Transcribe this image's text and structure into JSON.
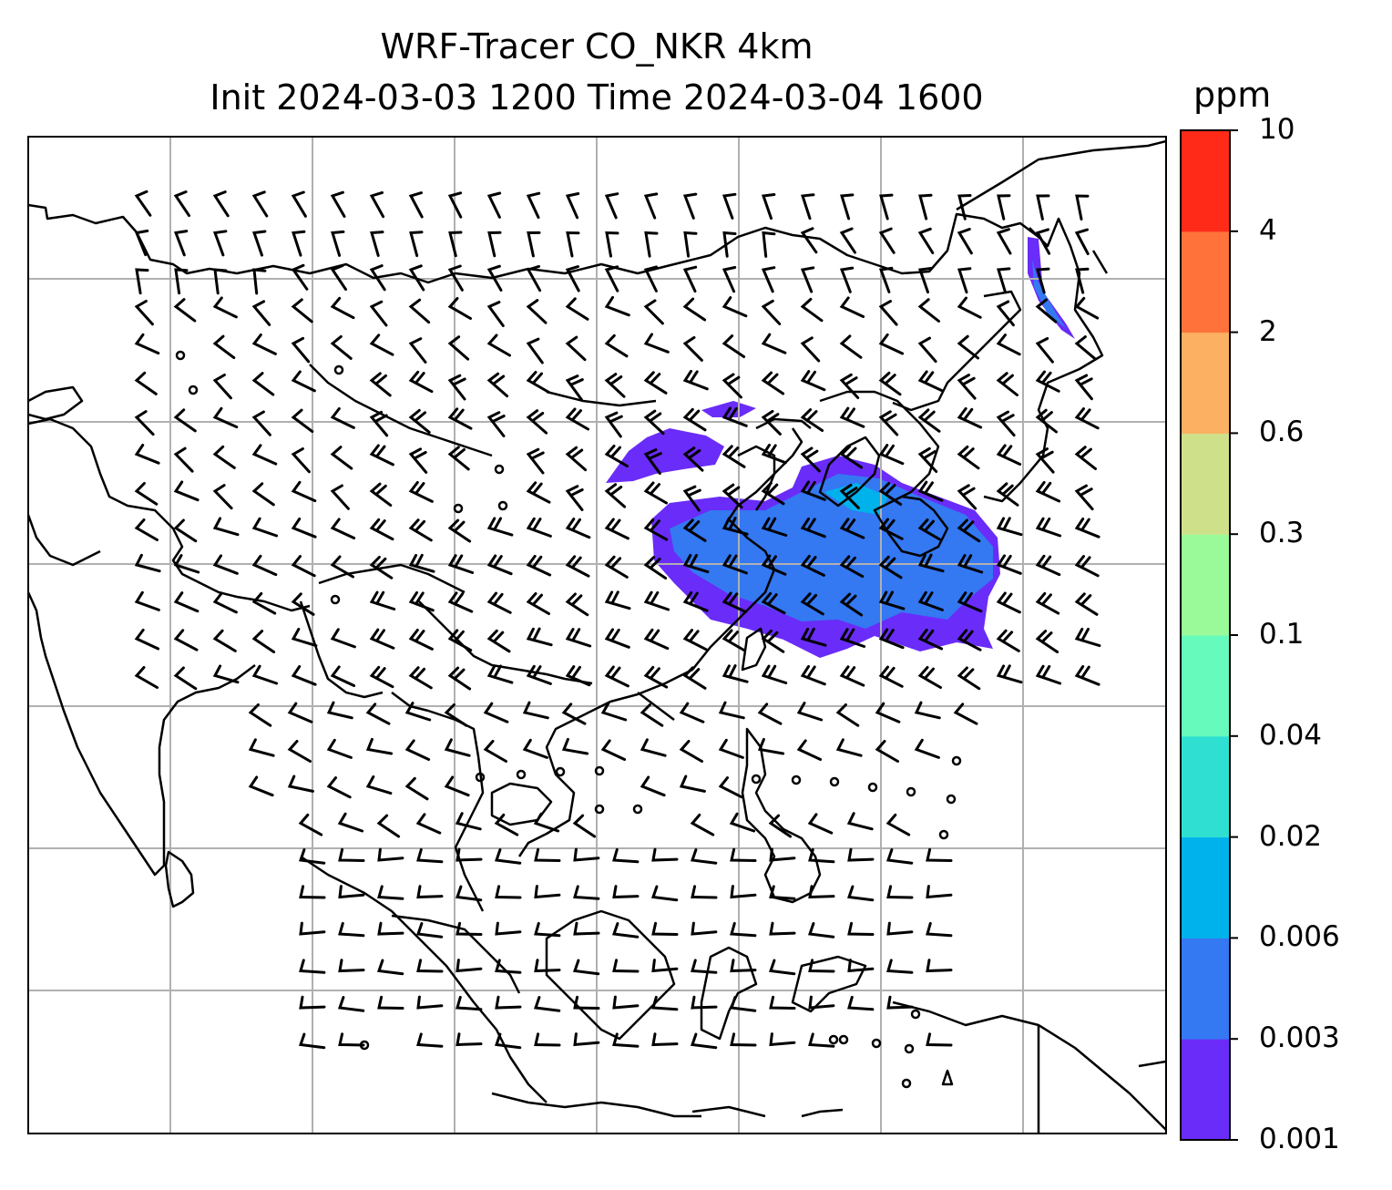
{
  "title_line1": "WRF-Tracer CO_NKR 4km",
  "title_line2": "Init 2024-03-03 1200 Time 2024-03-04 1600",
  "colorbar": {
    "unit": "ppm",
    "levels": [
      "0.001",
      "0.003",
      "0.006",
      "0.02",
      "0.04",
      "0.1",
      "0.3",
      "0.6",
      "2",
      "4",
      "10"
    ],
    "colors": [
      "#6a2cf8",
      "#3478f2",
      "#00b2ec",
      "#2fe0d2",
      "#66fabc",
      "#9afa9a",
      "#cfe08a",
      "#fcb062",
      "#ff733a",
      "#ff2a18"
    ]
  },
  "map": {
    "frame_color": "#000000",
    "gridline_color": "#b0b0b0",
    "coastline_color": "#000000",
    "wind_barb_color": "#000000",
    "tracer_plume_colors": [
      "#6a2cf8",
      "#3478f2",
      "#00b2ec"
    ]
  }
}
